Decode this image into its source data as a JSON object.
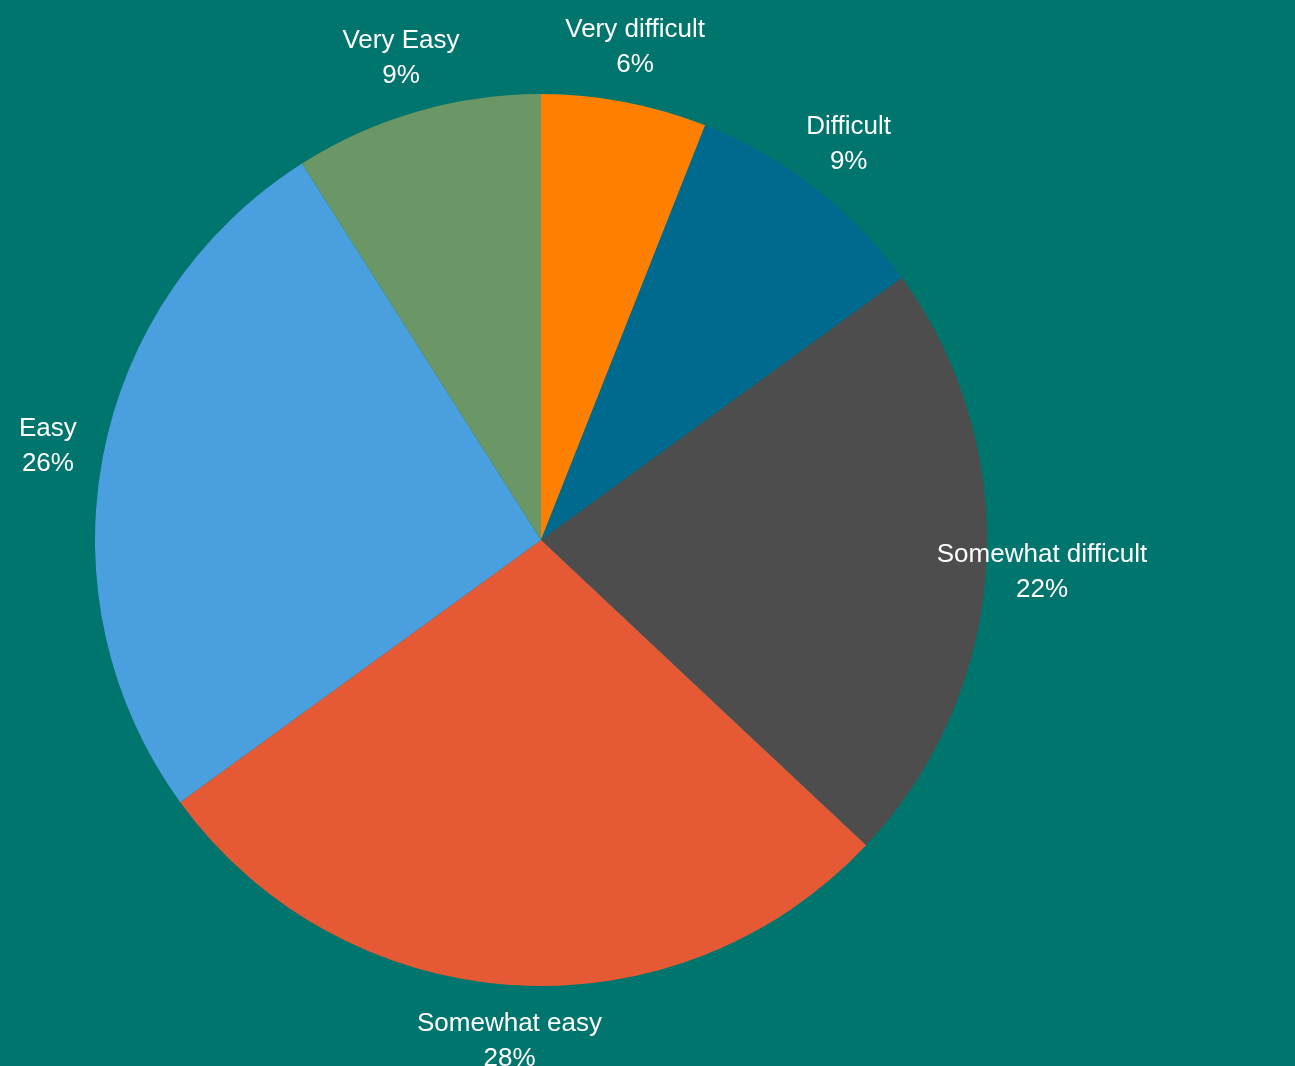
{
  "chart_data": {
    "type": "pie",
    "categories": [
      "Very difficult",
      "Difficult",
      "Somewhat difficult",
      "Somewhat easy",
      "Easy",
      "Very Easy"
    ],
    "values": [
      6,
      9,
      22,
      28,
      26,
      9
    ],
    "value_labels": [
      "6%",
      "9%",
      "22%",
      "28%",
      "26%",
      "9%"
    ],
    "colors": [
      "#ff8000",
      "#006a8e",
      "#4d4d4d",
      "#e55a34",
      "#4a9fdf",
      "#6b9767"
    ],
    "legend": false
  }
}
